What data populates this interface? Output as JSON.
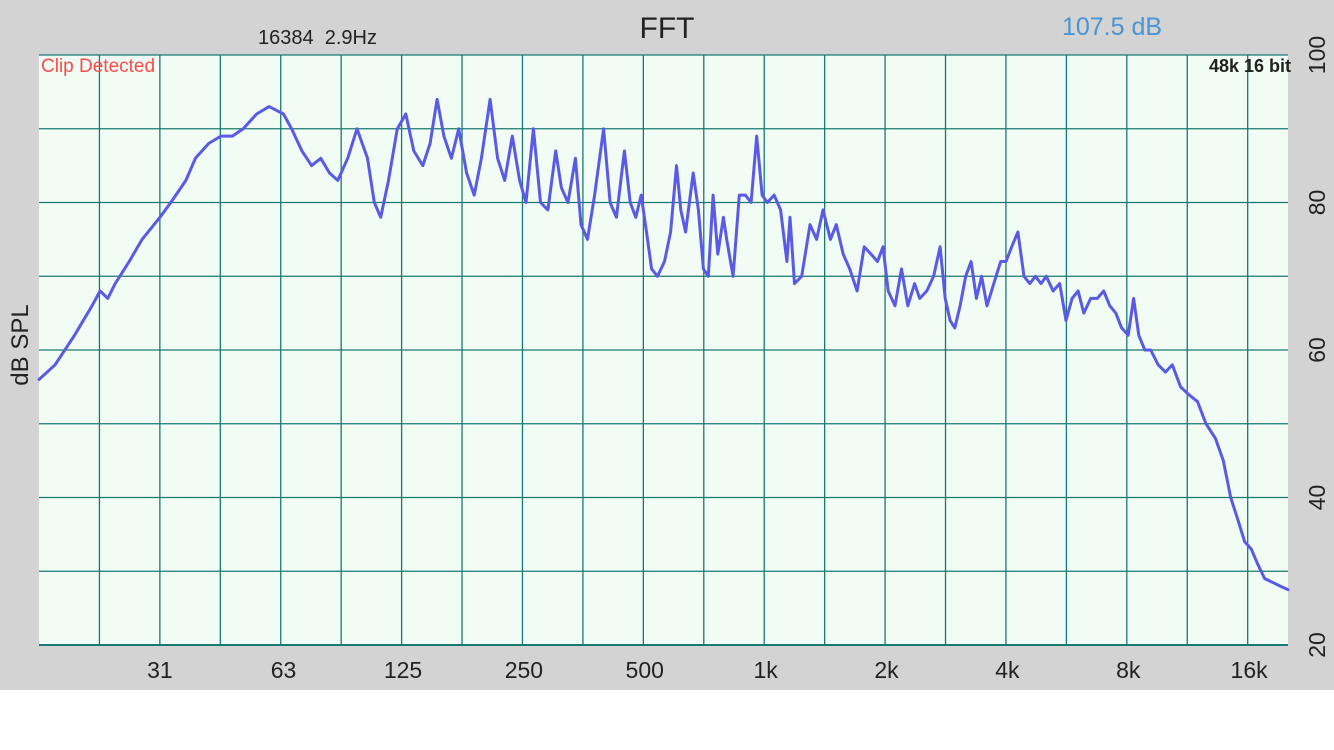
{
  "header": {
    "title": "FFT",
    "fft_info": "16384  2.9Hz",
    "level_readout": "107.5 dB",
    "clip_warning": "Clip Detected",
    "format_info": "48k 16 bit"
  },
  "colors": {
    "frame": "#d3d3d3",
    "plot_background": "#f0fcf4",
    "grid": "#1a7a70",
    "trace": "#5a5ae6",
    "level_readout": "#4a94d4",
    "clip_warning": "#ff4a4a",
    "text": "#222222"
  },
  "chart_data": {
    "type": "line",
    "title": "FFT",
    "ylabel": "dB SPL",
    "xlabel": "",
    "x_scale": "log2",
    "xlim": [
      15.5,
      20000
    ],
    "ylim": [
      20,
      100
    ],
    "grid": true,
    "x_major_ticks": [
      {
        "value": 31,
        "label": "31"
      },
      {
        "value": 63,
        "label": "63"
      },
      {
        "value": 125,
        "label": "125"
      },
      {
        "value": 250,
        "label": "250"
      },
      {
        "value": 500,
        "label": "500"
      },
      {
        "value": 1000,
        "label": "1k"
      },
      {
        "value": 2000,
        "label": "2k"
      },
      {
        "value": 4000,
        "label": "4k"
      },
      {
        "value": 8000,
        "label": "8k"
      },
      {
        "value": 16000,
        "label": "16k"
      }
    ],
    "y_ticks": [
      {
        "value": 20,
        "label": "20"
      },
      {
        "value": 40,
        "label": "40"
      },
      {
        "value": 60,
        "label": "60"
      },
      {
        "value": 80,
        "label": "80"
      },
      {
        "value": 100,
        "label": "100"
      }
    ],
    "series": [
      {
        "values": [
          [
            15.5,
            56
          ],
          [
            17,
            58
          ],
          [
            19,
            62
          ],
          [
            21,
            66
          ],
          [
            22,
            68
          ],
          [
            23,
            67
          ],
          [
            24,
            69
          ],
          [
            26,
            72
          ],
          [
            28,
            75
          ],
          [
            31,
            78
          ],
          [
            33,
            80
          ],
          [
            36,
            83
          ],
          [
            38,
            86
          ],
          [
            41,
            88
          ],
          [
            44,
            89
          ],
          [
            47,
            89
          ],
          [
            50,
            90
          ],
          [
            54,
            92
          ],
          [
            58,
            93
          ],
          [
            63,
            92
          ],
          [
            66,
            90
          ],
          [
            70,
            87
          ],
          [
            74,
            85
          ],
          [
            78,
            86
          ],
          [
            82,
            84
          ],
          [
            86,
            83
          ],
          [
            91,
            86
          ],
          [
            96,
            90
          ],
          [
            102,
            86
          ],
          [
            106,
            80
          ],
          [
            110,
            78
          ],
          [
            115,
            83
          ],
          [
            121,
            90
          ],
          [
            127,
            92
          ],
          [
            133,
            87
          ],
          [
            140,
            85
          ],
          [
            146,
            88
          ],
          [
            152,
            94
          ],
          [
            158,
            89
          ],
          [
            165,
            86
          ],
          [
            172,
            90
          ],
          [
            180,
            84
          ],
          [
            188,
            81
          ],
          [
            196,
            86
          ],
          [
            206,
            94
          ],
          [
            215,
            86
          ],
          [
            224,
            83
          ],
          [
            234,
            89
          ],
          [
            244,
            83
          ],
          [
            253,
            80
          ],
          [
            264,
            90
          ],
          [
            275,
            80
          ],
          [
            287,
            79
          ],
          [
            300,
            87
          ],
          [
            310,
            82
          ],
          [
            322,
            80
          ],
          [
            336,
            86
          ],
          [
            347,
            77
          ],
          [
            360,
            75
          ],
          [
            375,
            81
          ],
          [
            395,
            90
          ],
          [
            410,
            80
          ],
          [
            425,
            78
          ],
          [
            445,
            87
          ],
          [
            460,
            80
          ],
          [
            475,
            78
          ],
          [
            490,
            81
          ],
          [
            505,
            76
          ],
          [
            520,
            71
          ],
          [
            538,
            70
          ],
          [
            560,
            72
          ],
          [
            580,
            76
          ],
          [
            600,
            85
          ],
          [
            615,
            79
          ],
          [
            632,
            76
          ],
          [
            660,
            84
          ],
          [
            680,
            79
          ],
          [
            700,
            71
          ],
          [
            720,
            70
          ],
          [
            740,
            81
          ],
          [
            760,
            73
          ],
          [
            785,
            78
          ],
          [
            800,
            75
          ],
          [
            830,
            70
          ],
          [
            860,
            81
          ],
          [
            890,
            81
          ],
          [
            920,
            80
          ],
          [
            950,
            89
          ],
          [
            980,
            81
          ],
          [
            1010,
            80
          ],
          [
            1050,
            81
          ],
          [
            1090,
            79
          ],
          [
            1130,
            72
          ],
          [
            1150,
            78
          ],
          [
            1180,
            69
          ],
          [
            1230,
            70
          ],
          [
            1290,
            77
          ],
          [
            1340,
            75
          ],
          [
            1390,
            79
          ],
          [
            1450,
            75
          ],
          [
            1500,
            77
          ],
          [
            1560,
            73
          ],
          [
            1620,
            71
          ],
          [
            1690,
            68
          ],
          [
            1760,
            74
          ],
          [
            1830,
            73
          ],
          [
            1900,
            72
          ],
          [
            1960,
            74
          ],
          [
            2020,
            68
          ],
          [
            2100,
            66
          ],
          [
            2180,
            71
          ],
          [
            2260,
            66
          ],
          [
            2350,
            69
          ],
          [
            2420,
            67
          ],
          [
            2520,
            68
          ],
          [
            2620,
            70
          ],
          [
            2720,
            74
          ],
          [
            2800,
            67
          ],
          [
            2880,
            64
          ],
          [
            2960,
            63
          ],
          [
            3050,
            66
          ],
          [
            3150,
            70
          ],
          [
            3250,
            72
          ],
          [
            3350,
            67
          ],
          [
            3450,
            70
          ],
          [
            3560,
            66
          ],
          [
            3700,
            69
          ],
          [
            3850,
            72
          ],
          [
            3970,
            72
          ],
          [
            4100,
            74
          ],
          [
            4250,
            76
          ],
          [
            4400,
            70
          ],
          [
            4550,
            69
          ],
          [
            4700,
            70
          ],
          [
            4850,
            69
          ],
          [
            5000,
            70
          ],
          [
            5200,
            68
          ],
          [
            5400,
            69
          ],
          [
            5600,
            64
          ],
          [
            5800,
            67
          ],
          [
            6000,
            68
          ],
          [
            6200,
            65
          ],
          [
            6450,
            67
          ],
          [
            6700,
            67
          ],
          [
            6950,
            68
          ],
          [
            7200,
            66
          ],
          [
            7450,
            65
          ],
          [
            7700,
            63
          ],
          [
            8000,
            62
          ],
          [
            8250,
            67
          ],
          [
            8500,
            62
          ],
          [
            8800,
            60
          ],
          [
            9100,
            60
          ],
          [
            9500,
            58
          ],
          [
            9900,
            57
          ],
          [
            10300,
            58
          ],
          [
            10800,
            55
          ],
          [
            11300,
            54
          ],
          [
            11900,
            53
          ],
          [
            12500,
            50
          ],
          [
            13200,
            48
          ],
          [
            13800,
            45
          ],
          [
            14400,
            40
          ],
          [
            15000,
            37
          ],
          [
            15600,
            34
          ],
          [
            16200,
            33
          ],
          [
            16800,
            31
          ],
          [
            17500,
            29
          ],
          [
            18300,
            28.5
          ],
          [
            19100,
            28
          ],
          [
            20000,
            27.5
          ]
        ]
      }
    ]
  }
}
